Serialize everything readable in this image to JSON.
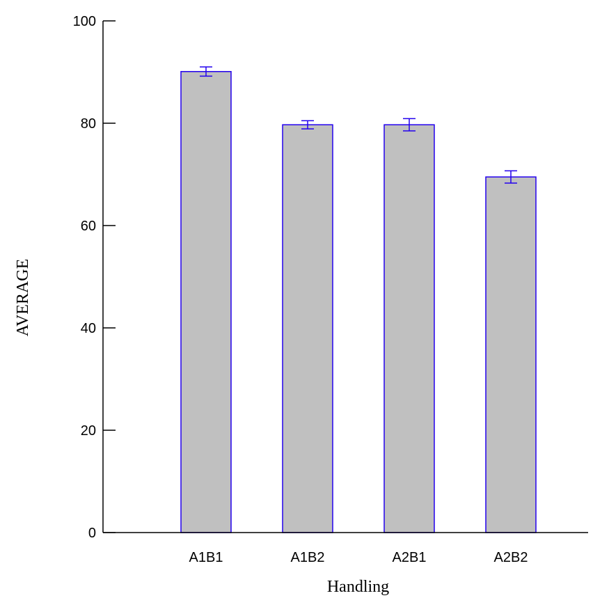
{
  "chart_data": {
    "type": "bar",
    "title": "",
    "xlabel": "Handling",
    "ylabel": "AVERAGE",
    "ylim": [
      0,
      100
    ],
    "yticks": [
      0,
      20,
      40,
      60,
      80,
      100
    ],
    "categories": [
      "A1B1",
      "A1B2",
      "A2B1",
      "A2B2"
    ],
    "values": [
      90.1,
      79.7,
      79.7,
      69.5
    ],
    "error": [
      0.9,
      0.8,
      1.2,
      1.2
    ],
    "grid": false,
    "legend": "none",
    "colors": {
      "bar_fill": "#c0c0c0",
      "bar_stroke": "#2200ee",
      "error_bar": "#2200ee",
      "axis": "#000000"
    }
  }
}
